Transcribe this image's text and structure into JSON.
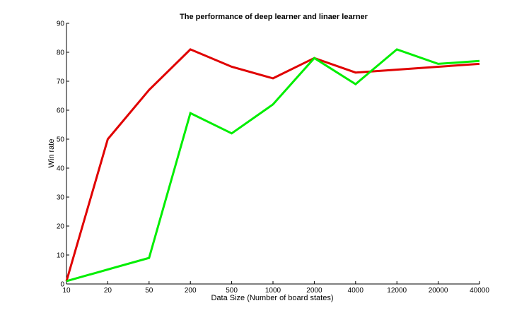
{
  "chart_data": {
    "type": "line",
    "title": "The performance of deep learner and linaer learner",
    "xlabel": "Data Size (Number of board states)",
    "ylabel": "Win rate",
    "categories": [
      "10",
      "20",
      "50",
      "200",
      "500",
      "1000",
      "2000",
      "4000",
      "12000",
      "20000",
      "40000"
    ],
    "ylim": [
      0,
      90
    ],
    "yticks": [
      "0",
      "10",
      "20",
      "30",
      "40",
      "50",
      "60",
      "70",
      "80",
      "90"
    ],
    "grid": false,
    "series": [
      {
        "color": "#e00000",
        "values": [
          1,
          50,
          67,
          81,
          75,
          71,
          78,
          73,
          74,
          75,
          76
        ]
      },
      {
        "color": "#00ee00",
        "values": [
          1,
          5,
          9,
          59,
          52,
          62,
          78,
          69,
          81,
          76,
          77
        ]
      }
    ]
  }
}
